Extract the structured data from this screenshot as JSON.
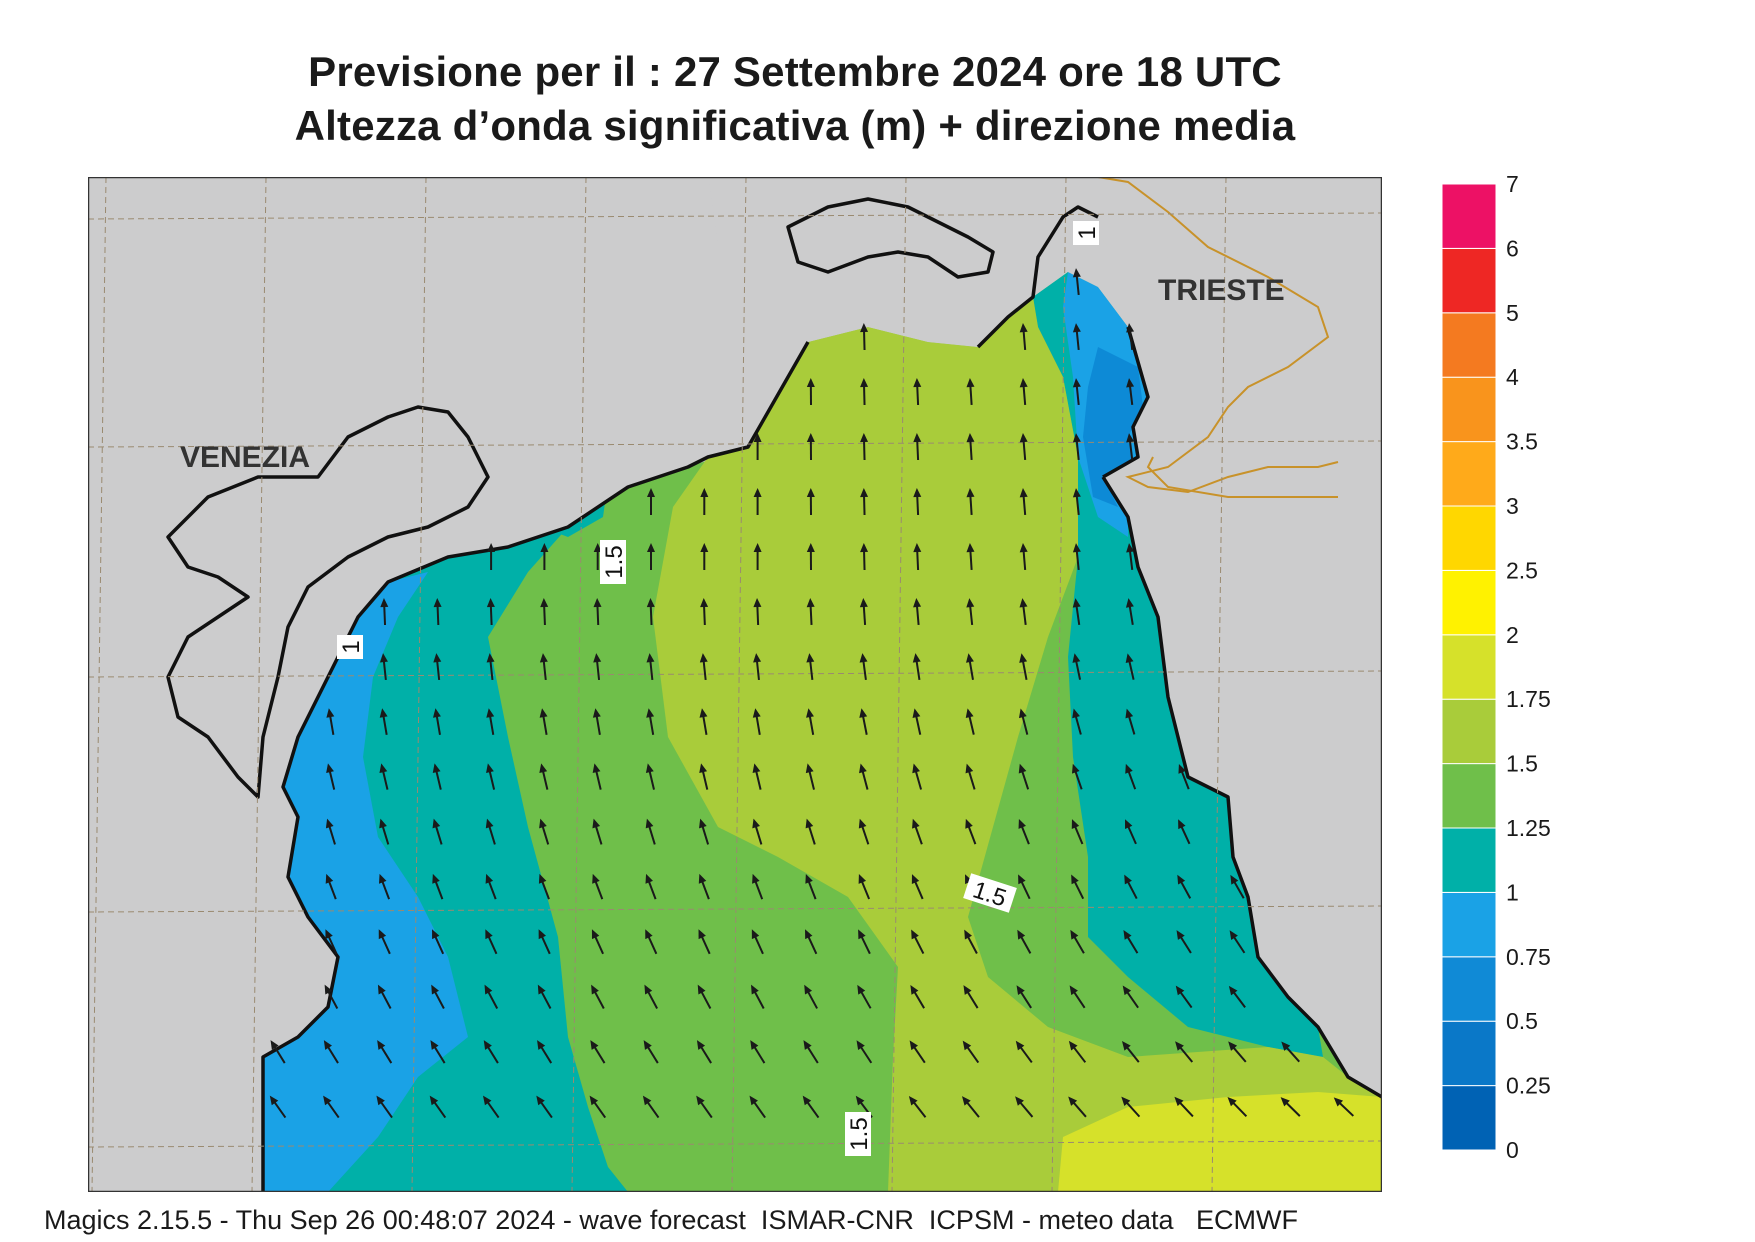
{
  "header": {
    "title_line1": "Previsione per il  :  27 Settembre 2024   ore 18 UTC",
    "title_line2": "Altezza d’onda significativa (m) + direzione media"
  },
  "map": {
    "cities": [
      {
        "name": "VENEZIA"
      },
      {
        "name": "TRIESTE"
      }
    ],
    "contour_labels": [
      "1.5",
      "1",
      "1.5",
      "1.5",
      "1"
    ],
    "colors": {
      "land": "#cccccd",
      "coast": "#111111",
      "border": "#c8922a",
      "grid": "#9a8a70",
      "arrow": "#1a1a1a"
    },
    "zone_colors": {
      "band_0_5_0_75": "#0d8ad6",
      "band_0_75_1": "#1aa2e6",
      "band_1_1_25": "#00b0a8",
      "band_1_25_1_5": "#6fbf4a",
      "band_1_5_1_75": "#a9cc3a",
      "band_1_75_2": "#d6e12a"
    },
    "mean_wave_direction": "from south / south-east (arrows pointing north / north-west)"
  },
  "legend": {
    "levels": [
      "0",
      "0.25",
      "0.5",
      "0.75",
      "1",
      "1.25",
      "1.5",
      "1.75",
      "2",
      "2.5",
      "3",
      "3.5",
      "4",
      "5",
      "6",
      "7"
    ],
    "colors": [
      "#0062b4",
      "#0a78c8",
      "#108ad6",
      "#1aa2e6",
      "#00b0a8",
      "#6fbf4a",
      "#a9cc3a",
      "#d6e12a",
      "#fff200",
      "#ffd700",
      "#ffaa1a",
      "#f9941c",
      "#f47a20",
      "#ee2724",
      "#ed1165"
    ]
  },
  "footer": {
    "text": "Magics 2.15.5 - Thu Sep 26 00:48:07 2024 - wave forecast  ISMAR-CNR  ICPSM - meteo data   ECMWF"
  }
}
